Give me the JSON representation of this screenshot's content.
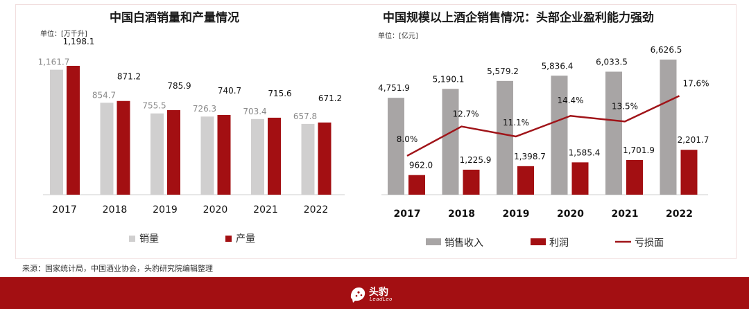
{
  "charts": {
    "left": {
      "title": "中国白酒销量和产量情况",
      "unit": "单位：[万千升]"
    },
    "right": {
      "title": "中国规模以上酒企销售情况：头部企业盈利能力强劲",
      "unit": "单位：[亿元]"
    }
  },
  "source": "来源：国家统计局，中国酒业协会，头豹研究院编辑整理",
  "footer": {
    "brand": "头豹",
    "brand_sub": "LeadLeo"
  },
  "colors": {
    "accent": "#a30f12",
    "grey_light": "#d0cfcf",
    "grey_mid": "#a8a5a5",
    "line": "#a01419"
  },
  "chart_data": [
    {
      "type": "bar",
      "title": "中国白酒销量和产量情况",
      "unit": "单位：[万千升]",
      "categories": [
        "2017",
        "2018",
        "2019",
        "2020",
        "2021",
        "2022"
      ],
      "series": [
        {
          "name": "销量",
          "values": [
            1161.7,
            854.7,
            755.5,
            726.3,
            703.4,
            657.8
          ],
          "labels": [
            "1,161.7",
            "854.7",
            "755.5",
            "726.3",
            "703.4",
            "657.8"
          ],
          "color": "#d0cfcf"
        },
        {
          "name": "产量",
          "values": [
            1198.1,
            871.2,
            785.9,
            740.7,
            715.6,
            671.2
          ],
          "labels": [
            "1,198.1",
            "871.2",
            "785.9",
            "740.7",
            "715.6",
            "671.2"
          ],
          "color": "#a30f12"
        }
      ],
      "ylim": [
        0,
        1400
      ],
      "grid": false,
      "legend": "bottom"
    },
    {
      "type": "bar",
      "title": "中国规模以上酒企销售情况：头部企业盈利能力强劲",
      "unit": "单位：[亿元]",
      "categories": [
        "2017",
        "2018",
        "2019",
        "2020",
        "2021",
        "2022"
      ],
      "series": [
        {
          "name": "销售收入",
          "values": [
            4751.9,
            5190.1,
            5579.2,
            5836.4,
            6033.5,
            6626.5
          ],
          "labels": [
            "4,751.9",
            "5,190.1",
            "5,579.2",
            "5,836.4",
            "6,033.5",
            "6,626.5"
          ],
          "color": "#a8a5a5"
        },
        {
          "name": "利润",
          "values": [
            962.0,
            1225.9,
            1398.7,
            1585.4,
            1701.9,
            2201.7
          ],
          "labels": [
            "962.0",
            "1,225.9",
            "1,398.7",
            "1,585.4",
            "1,701.9",
            "2,201.7"
          ],
          "color": "#a30f12"
        },
        {
          "name": "亏损面",
          "type": "line",
          "values": [
            8.0,
            12.7,
            11.1,
            14.4,
            13.5,
            17.6
          ],
          "labels": [
            "8.0%",
            "12.7%",
            "11.1%",
            "14.4%",
            "13.5%",
            "17.6%"
          ],
          "color": "#a01419"
        }
      ],
      "ylim": [
        0,
        7200
      ],
      "y2lim": [
        0,
        22
      ],
      "grid": false,
      "legend": "bottom"
    }
  ]
}
